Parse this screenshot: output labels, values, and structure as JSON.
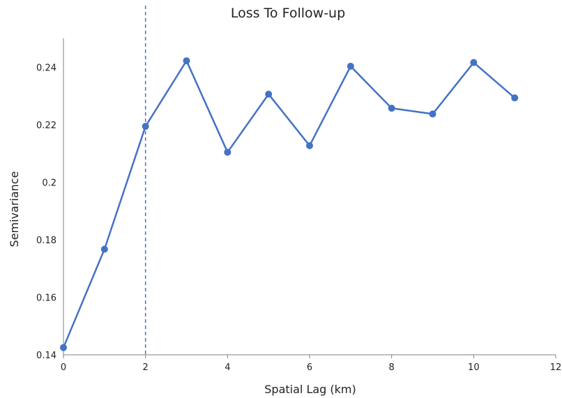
{
  "chart_data": {
    "type": "line",
    "title": "Loss To  Follow-up",
    "xlabel": "Spatial Lag (km)",
    "ylabel": "Semivariance",
    "xlim": [
      0,
      12
    ],
    "ylim": [
      0.14,
      0.25
    ],
    "xticks": [
      0,
      2,
      4,
      6,
      8,
      10,
      12
    ],
    "yticks": [
      0.14,
      0.16,
      0.18,
      0.2,
      0.22,
      0.24
    ],
    "xtick_labels": [
      "0",
      "2",
      "4",
      "6",
      "8",
      "10",
      "12"
    ],
    "ytick_labels": [
      "0.14",
      "0.16",
      "0.18",
      "0.2",
      "0.22",
      "0.24"
    ],
    "grid": false,
    "reference_line": {
      "x": 2,
      "style": "dashed",
      "color": "#4472c4"
    },
    "series": [
      {
        "color": "#4472c4",
        "marker": "circle",
        "x": [
          0,
          1,
          2,
          3,
          4,
          5,
          6,
          7,
          8,
          9,
          10,
          11
        ],
        "y": [
          0.1425,
          0.1767,
          0.2194,
          0.2422,
          0.2104,
          0.2306,
          0.2127,
          0.2403,
          0.2257,
          0.2237,
          0.2416,
          0.2293
        ]
      }
    ]
  }
}
